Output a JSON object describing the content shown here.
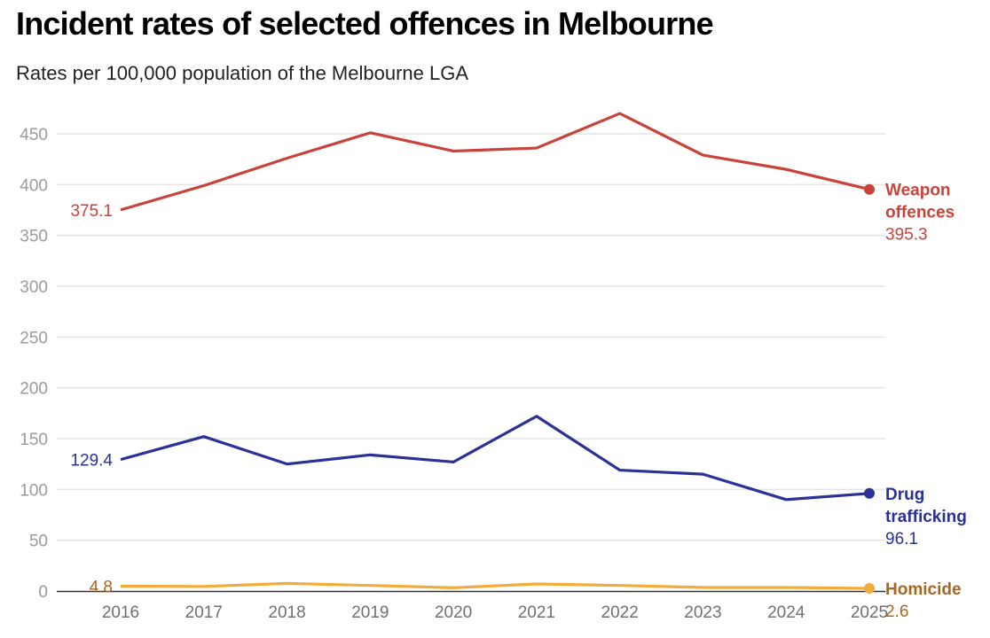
{
  "header": {
    "title": "Incident rates of selected offences in Melbourne",
    "subtitle": "Rates per 100,000 population of the Melbourne LGA"
  },
  "chart_data": {
    "type": "line",
    "title": "Incident rates of selected offences in Melbourne",
    "subtitle": "Rates per 100,000 population of the Melbourne LGA",
    "xlabel": "",
    "ylabel": "",
    "x": [
      "2016",
      "2017",
      "2018",
      "2019",
      "2020",
      "2021",
      "2022",
      "2023",
      "2024",
      "2025"
    ],
    "ylim": [
      0,
      470
    ],
    "yticks": [
      0,
      50,
      100,
      150,
      200,
      250,
      300,
      350,
      400,
      450
    ],
    "grid": true,
    "legend": "direct-labels-right",
    "series": [
      {
        "name": "Weapon offences",
        "label_lines": [
          "Weapon",
          "offences"
        ],
        "color": "#c8433a",
        "label_color": "#c8433a",
        "values": [
          375.1,
          399,
          426,
          451,
          433,
          436,
          470,
          429,
          415,
          395.3
        ],
        "start_label": "375.1",
        "end_label": "395.3"
      },
      {
        "name": "Drug trafficking",
        "label_lines": [
          "Drug",
          "trafficking"
        ],
        "color": "#2b3196",
        "label_color": "#2b3196",
        "values": [
          129.4,
          152,
          125,
          134,
          127,
          172,
          119,
          115,
          90,
          96.1
        ],
        "start_label": "129.4",
        "end_label": "96.1"
      },
      {
        "name": "Homicide",
        "label_lines": [
          "Homicide"
        ],
        "color": "#f2ac3c",
        "label_color": "#a8671f",
        "values": [
          4.8,
          4.5,
          7.5,
          5.5,
          3.2,
          7.0,
          5.5,
          3.5,
          3.5,
          2.6
        ],
        "start_label": "4.8",
        "end_label": "2.6"
      }
    ]
  }
}
